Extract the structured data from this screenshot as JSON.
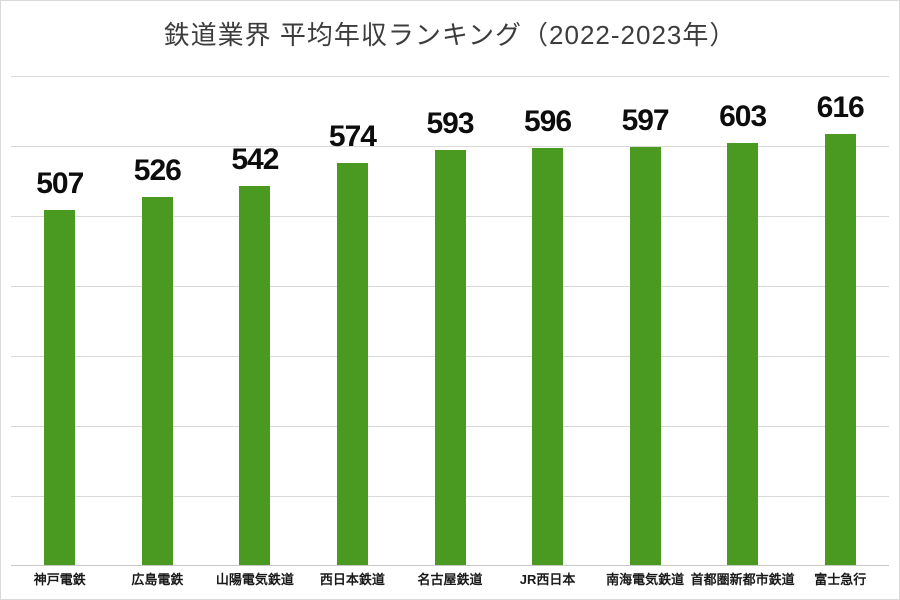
{
  "chart_data": {
    "type": "bar",
    "title": "鉄道業界 平均年収ランキング（2022-2023年）",
    "categories": [
      "神戸電鉄",
      "広島電鉄",
      "山陽電気鉄道",
      "西日本鉄道",
      "名古屋鉄道",
      "JR西日本",
      "南海電気鉄道",
      "首都圏新都市鉄道",
      "富士急行"
    ],
    "values": [
      507,
      526,
      542,
      574,
      593,
      596,
      597,
      603,
      616
    ],
    "xlabel": "",
    "ylabel": "",
    "ylim": [
      0,
      700
    ],
    "gridline_interval": 100,
    "grid": true,
    "y_tick_labels_visible": false,
    "legend": "none",
    "value_labels": "outside-end"
  },
  "colors": {
    "bar_fill": "#4a9a22",
    "gridline": "#d9d9d9",
    "axis_line": "#c8c8c8",
    "title_text": "#3c3c3c",
    "value_label_text": "#0d0d0d",
    "category_label_text": "#1a1a1a",
    "background": "#ffffff",
    "frame_border": "#d9d9d9"
  }
}
